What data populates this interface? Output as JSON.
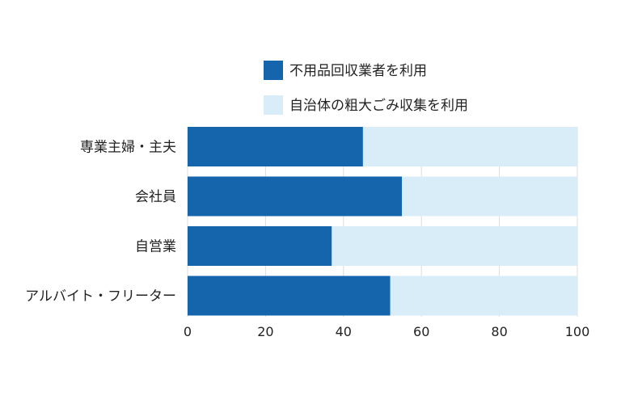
{
  "chart_data": {
    "type": "bar",
    "orientation": "horizontal",
    "stacked": true,
    "categories": [
      "専業主婦・主夫",
      "会社員",
      "自営業",
      "アルバイト・フリーター"
    ],
    "series": [
      {
        "name": "不用品回収業者を利用",
        "values": [
          45,
          55,
          37,
          52
        ],
        "color": "#1565ad"
      },
      {
        "name": "自治体の粗大ごみ収集を利用",
        "values": [
          55,
          45,
          63,
          48
        ],
        "color": "#d9edf9"
      }
    ],
    "xlim": [
      0,
      100
    ],
    "xticks": [
      0,
      20,
      40,
      60,
      80,
      100
    ],
    "grid": "vertical",
    "legend_position": "top"
  }
}
